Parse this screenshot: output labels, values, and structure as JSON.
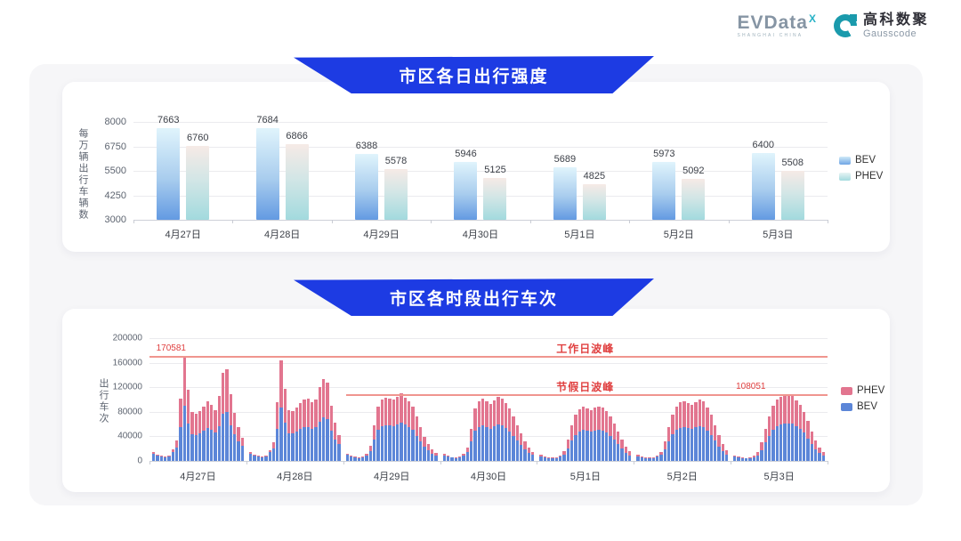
{
  "header": {
    "evdata": {
      "name": "EVData",
      "superscript": "X",
      "subtext": "SHANGHAI CHINA"
    },
    "gausscode": {
      "name_cn": "高科数聚",
      "name_en": "Gausscode"
    }
  },
  "colors": {
    "banner_blue": "#1d3be3",
    "daily_bev_gradient": [
      "#e0f4fc",
      "#639ae2"
    ],
    "daily_phev_gradient": [
      "#f6eae6",
      "#a2dade"
    ],
    "hourly_bev": "#5c86d8",
    "hourly_phev": "#e2758f",
    "annotation_line": "#f0958f",
    "annotation_text": "#e04040"
  },
  "chart_data": [
    {
      "type": "bar",
      "title": "市区各日出行强度",
      "ylabel": "每万辆出行车辆数",
      "ylim": [
        3000,
        8000
      ],
      "yticks": [
        8000,
        6750,
        5500,
        4250,
        3000
      ],
      "grid": true,
      "legend_position": "right",
      "legend": [
        "BEV",
        "PHEV"
      ],
      "categories": [
        "4月27日",
        "4月28日",
        "4月29日",
        "4月30日",
        "5月1日",
        "5月2日",
        "5月3日"
      ],
      "series": [
        {
          "name": "BEV",
          "values": [
            7663,
            7684,
            6388,
            5946,
            5689,
            5973,
            6400
          ]
        },
        {
          "name": "PHEV",
          "values": [
            6760,
            6866,
            5578,
            5125,
            4825,
            5092,
            5508
          ]
        }
      ]
    },
    {
      "type": "bar",
      "stacked": true,
      "title": "市区各时段出行车次",
      "ylabel": "出行车次",
      "ylim": [
        0,
        200000
      ],
      "yticks": [
        200000,
        160000,
        120000,
        80000,
        40000,
        0
      ],
      "grid": true,
      "legend_position": "right",
      "legend": [
        "PHEV",
        "BEV"
      ],
      "categories": [
        "4月27日",
        "4月28日",
        "4月29日",
        "4月30日",
        "5月1日",
        "5月2日",
        "5月3日"
      ],
      "hours_per_day": 24,
      "series": [
        {
          "name": "BEV",
          "values_by_day": [
            [
              11400,
              8100,
              6600,
              5800,
              7300,
              14100,
              21700,
              55700,
              90400,
              61600,
              44200,
              41900,
              44700,
              48600,
              53200,
              50400,
              45800,
              56400,
              76400,
              79300,
              57400,
              43100,
              32200,
              24800
            ],
            [
              12100,
              8300,
              6600,
              5700,
              7200,
              13800,
              19600,
              52500,
              87100,
              62100,
              45200,
              44300,
              47800,
              52100,
              54900,
              55700,
              52400,
              54800,
              63800,
              70600,
              67600,
              49300,
              35500,
              27000
            ],
            [
              9800,
              7300,
              5400,
              5000,
              5700,
              9200,
              15700,
              34700,
              51200,
              56800,
              58600,
              57900,
              57100,
              59300,
              62600,
              58800,
              55100,
              50400,
              41200,
              31500,
              22700,
              16900,
              11900,
              8800
            ],
            [
              9000,
              6600,
              5100,
              4700,
              5400,
              8300,
              14300,
              31400,
              49400,
              55600,
              58100,
              55200,
              52600,
              56300,
              59500,
              58000,
              53900,
              48400,
              40900,
              32800,
              25500,
              19100,
              13100,
              9700
            ],
            [
              7800,
              5800,
              4600,
              4200,
              4900,
              6700,
              10300,
              20800,
              33500,
              42600,
              48000,
              50300,
              49000,
              47400,
              49200,
              50800,
              49700,
              46500,
              41000,
              34400,
              27100,
              19800,
              13500,
              9000
            ],
            [
              7700,
              5800,
              4500,
              4100,
              4800,
              6600,
              9900,
              19100,
              31800,
              42900,
              50200,
              54300,
              55200,
              53400,
              52000,
              54900,
              56800,
              55200,
              49900,
              42600,
              33200,
              23800,
              15900,
              10100
            ],
            [
              7400,
              5400,
              4200,
              4000,
              4700,
              6200,
              9000,
              17900,
              30000,
              41300,
              51400,
              56900,
              59400,
              60600,
              61600,
              60200,
              56400,
              52300,
              45700,
              36900,
              27300,
              19200,
              12500,
              8200
            ]
          ]
        },
        {
          "name": "PHEV",
          "values_by_day": [
            [
              2800,
              2000,
              1700,
              1400,
              1800,
              4500,
              11700,
              45500,
              80181,
              54700,
              36200,
              34300,
              36600,
              39800,
              43600,
              41200,
              37400,
              50000,
              67800,
              70300,
              50900,
              35300,
              23400,
              13400
            ],
            [
              3000,
              2100,
              1600,
              1400,
              1800,
              4300,
              10600,
              42900,
              77200,
              55100,
              36900,
              36300,
              39100,
              42600,
              44900,
              45500,
              42900,
              44800,
              56600,
              62600,
              60000,
              40400,
              26300,
              14600
            ],
            [
              2400,
              1800,
              1400,
              1200,
              1400,
              3100,
              8400,
              23100,
              37000,
              42900,
              44200,
              43700,
              43100,
              44800,
              47200,
              44400,
              41600,
              38000,
              31100,
              23700,
              17100,
              11200,
              6400,
              4800
            ],
            [
              2300,
              1600,
              1300,
              1200,
              1400,
              2800,
              7700,
              20900,
              35700,
              42000,
              43800,
              41600,
              39700,
              42400,
              44800,
              43700,
              40700,
              36500,
              30900,
              24800,
              19200,
              12800,
              8700,
              5200
            ],
            [
              2000,
              1500,
              1100,
              1000,
              1200,
              2200,
              5500,
              13800,
              24200,
              32200,
              36200,
              38000,
              36900,
              35800,
              37200,
              38300,
              37500,
              35100,
              30900,
              25900,
              20500,
              15000,
              10200,
              6800
            ],
            [
              1900,
              1400,
              1100,
              1000,
              1200,
              2200,
              5300,
              12800,
              23000,
              32300,
              37900,
              41000,
              41600,
              40300,
              39200,
              41500,
              42900,
              41600,
              37700,
              32200,
              25100,
              17900,
              12000,
              7700
            ],
            [
              1800,
              1400,
              1100,
              1000,
              1200,
              2100,
              4900,
              11900,
              21700,
              31100,
              38700,
              42900,
              44800,
              45700,
              46451,
              45400,
              42500,
              39400,
              34500,
              27900,
              20600,
              14400,
              9400,
              6100
            ]
          ]
        }
      ],
      "annotations": [
        {
          "label": "工作日波峰",
          "value": 170581,
          "value_label": "170581",
          "x_start_frac": 0
        },
        {
          "label": "节假日波峰",
          "value": 108051,
          "value_label": "108051",
          "x_start_frac": 0.29
        }
      ]
    }
  ]
}
